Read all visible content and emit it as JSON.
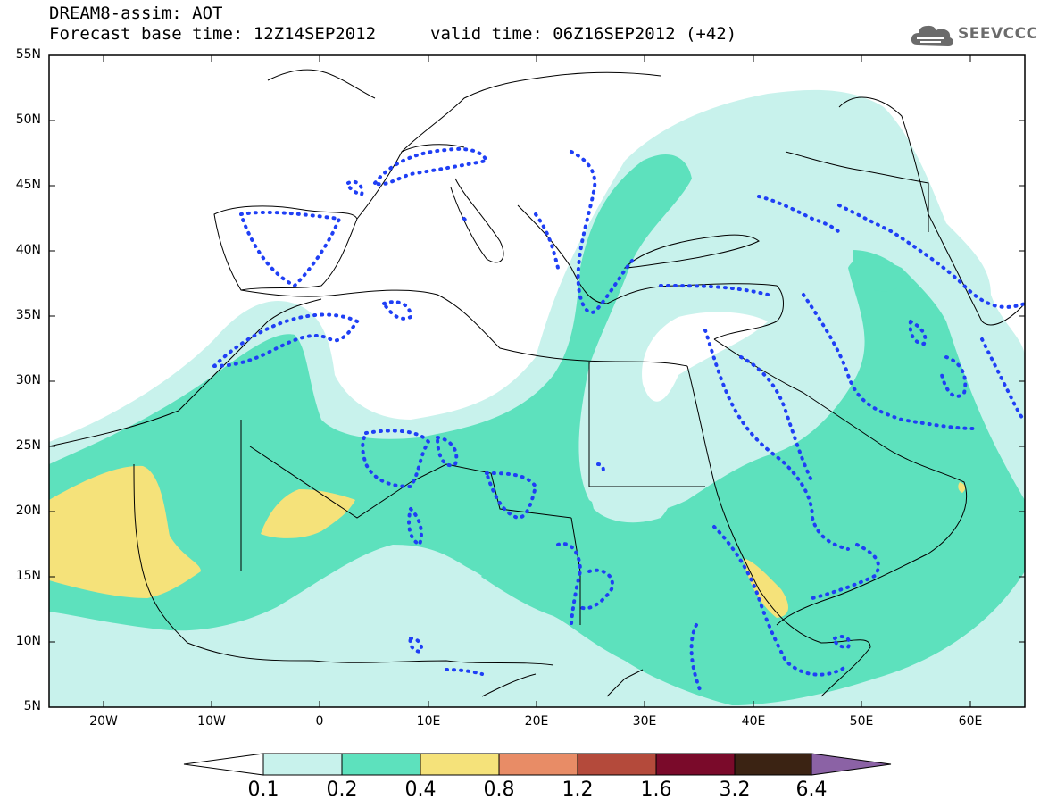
{
  "header": {
    "line1": "DREAM8-assim: AOT",
    "line2": "Forecast base time: 12Z14SEP2012",
    "valid": "valid time: 06Z16SEP2012 (+42)"
  },
  "logo": {
    "text": "SEEVCCC",
    "icon": "cloud-icon"
  },
  "map": {
    "lat_labels": [
      "55N",
      "50N",
      "45N",
      "40N",
      "35N",
      "30N",
      "25N",
      "20N",
      "15N",
      "10N",
      "5N"
    ],
    "lon_labels": [
      "20W",
      "10W",
      "0",
      "10E",
      "20E",
      "30E",
      "40E",
      "50E",
      "60E"
    ]
  },
  "colorbar": {
    "labels": [
      "0.1",
      "0.2",
      "0.4",
      "0.8",
      "1.2",
      "1.6",
      "3.2",
      "6.4"
    ],
    "colors": [
      "#ffffff",
      "#c8f2ec",
      "#5de1bd",
      "#f5e27a",
      "#e88c66",
      "#b44a3b",
      "#7a0a2a",
      "#3b2313",
      "#8b62a5"
    ]
  }
}
